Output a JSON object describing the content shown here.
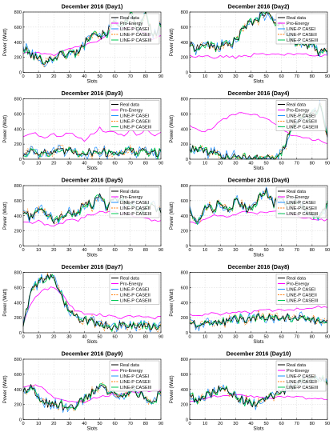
{
  "figure": {
    "legend_order": [
      "Real data",
      "Pro-Energy",
      "LINE-P CASEI",
      "LINE-P CASEII",
      "LINE-P CASEIII"
    ]
  },
  "series_colors": {
    "Real data": "#000000",
    "Pro-Energy": "#ff00ff",
    "LINE-P CASEI": "#1e90ff",
    "LINE-P CASEII": "#ff7f0e",
    "LINE-P CASEIII": "#00c853"
  },
  "chart_data": [
    {
      "type": "line",
      "title": "December 2016 (Day1)",
      "xlabel": "Slots",
      "ylabel": "Power (Watt)",
      "xlim": [
        0,
        90
      ],
      "ylim": [
        0,
        800
      ],
      "xticks": [
        0,
        10,
        20,
        30,
        40,
        50,
        60,
        70,
        80,
        90
      ],
      "yticks": [
        0,
        200,
        400,
        600,
        800
      ],
      "grid": true,
      "legend_position": "top-right",
      "legend_entries": [
        "Real data",
        "Pro-Energy",
        "LINE-P CASEI",
        "LINE-P CASEII",
        "LINE-P CASEIII"
      ],
      "x": [
        0,
        5,
        10,
        15,
        20,
        25,
        30,
        35,
        40,
        45,
        50,
        55,
        60,
        65,
        70,
        75,
        80,
        85,
        90
      ],
      "series": [
        {
          "name": "Real data",
          "values": [
            320,
            230,
            180,
            150,
            200,
            240,
            250,
            270,
            380,
            560,
            480,
            540,
            680,
            620,
            740,
            560,
            780,
            460,
            650
          ]
        },
        {
          "name": "Pro-Energy",
          "values": [
            250,
            260,
            260,
            250,
            240,
            270,
            300,
            330,
            360,
            400,
            430,
            500,
            560,
            580,
            590,
            560,
            520,
            430,
            480
          ]
        }
      ]
    },
    {
      "type": "line",
      "title": "December 2016 (Day2)",
      "xlabel": "Slots",
      "ylabel": "Power (Watt)",
      "xlim": [
        0,
        90
      ],
      "ylim": [
        0,
        800
      ],
      "xticks": [
        0,
        10,
        20,
        30,
        40,
        50,
        60,
        70,
        80,
        90
      ],
      "yticks": [
        0,
        200,
        400,
        600,
        800
      ],
      "grid": true,
      "legend_position": "top-right",
      "legend_entries": [
        "Real data",
        "Pro-Energy",
        "LINE-P CASEI",
        "LINE-P CASEII",
        "LINE-P CASEIII"
      ],
      "x": [
        0,
        5,
        10,
        15,
        20,
        25,
        30,
        35,
        40,
        45,
        50,
        55,
        60,
        65,
        70,
        75,
        80,
        85,
        90
      ],
      "series": [
        {
          "name": "Real data",
          "values": [
            360,
            330,
            380,
            330,
            350,
            360,
            420,
            580,
            660,
            720,
            780,
            690,
            640,
            440,
            380,
            330,
            360,
            250,
            320
          ]
        },
        {
          "name": "Pro-Energy",
          "values": [
            230,
            210,
            220,
            200,
            210,
            220,
            200,
            230,
            220,
            260,
            240,
            250,
            230,
            260,
            240,
            250,
            230,
            230,
            220
          ]
        }
      ]
    },
    {
      "type": "line",
      "title": "December 2016 (Day3)",
      "xlabel": "Slots",
      "ylabel": "Power (Watt)",
      "xlim": [
        0,
        90
      ],
      "ylim": [
        0,
        800
      ],
      "xticks": [
        0,
        10,
        20,
        30,
        40,
        50,
        60,
        70,
        80,
        90
      ],
      "yticks": [
        0,
        200,
        400,
        600,
        800
      ],
      "grid": true,
      "legend_position": "top-right",
      "legend_entries": [
        "Real data",
        "Pro-Energy",
        "LINE-P CASEI",
        "LINE-P CASEII",
        "LINE-P CASEIII"
      ],
      "x": [
        0,
        5,
        10,
        15,
        20,
        25,
        30,
        35,
        40,
        45,
        50,
        55,
        60,
        65,
        70,
        75,
        80,
        85,
        90
      ],
      "series": [
        {
          "name": "Real data",
          "values": [
            60,
            120,
            100,
            90,
            80,
            100,
            110,
            90,
            100,
            90,
            110,
            80,
            90,
            100,
            110,
            90,
            100,
            80,
            90
          ]
        },
        {
          "name": "Pro-Energy",
          "values": [
            300,
            360,
            320,
            280,
            330,
            300,
            360,
            300,
            250,
            330,
            410,
            350,
            370,
            300,
            390,
            320,
            400,
            310,
            350
          ]
        }
      ]
    },
    {
      "type": "line",
      "title": "December 2016 (Day4)",
      "xlabel": "Slots",
      "ylabel": "Power (Watt)",
      "xlim": [
        0,
        90
      ],
      "ylim": [
        0,
        800
      ],
      "xticks": [
        0,
        10,
        20,
        30,
        40,
        50,
        60,
        70,
        80,
        90
      ],
      "yticks": [
        0,
        200,
        400,
        600,
        800
      ],
      "grid": true,
      "legend_position": "top-right",
      "legend_entries": [
        "Real data",
        "Pro-Energy",
        "LINE-P CASEI",
        "LINE-P CASEII",
        "LINE-P CASEIII"
      ],
      "x": [
        0,
        5,
        10,
        15,
        20,
        25,
        30,
        35,
        40,
        45,
        50,
        55,
        60,
        65,
        70,
        75,
        80,
        85,
        90
      ],
      "series": [
        {
          "name": "Real data",
          "values": [
            150,
            120,
            100,
            80,
            60,
            30,
            20,
            10,
            10,
            20,
            20,
            30,
            80,
            350,
            500,
            560,
            600,
            720,
            300
          ]
        },
        {
          "name": "Pro-Energy",
          "values": [
            450,
            380,
            350,
            420,
            500,
            560,
            600,
            620,
            600,
            580,
            530,
            480,
            420,
            340,
            300,
            270,
            260,
            250,
            200
          ]
        }
      ]
    },
    {
      "type": "line",
      "title": "December 2016 (Day5)",
      "xlabel": "Slots",
      "ylabel": "Power (Watt)",
      "xlim": [
        0,
        90
      ],
      "ylim": [
        0,
        800
      ],
      "xticks": [
        0,
        10,
        20,
        30,
        40,
        50,
        60,
        70,
        80,
        90
      ],
      "yticks": [
        0,
        200,
        400,
        600,
        800
      ],
      "grid": true,
      "legend_position": "top-right",
      "legend_entries": [
        "Real data",
        "Pro-Energy",
        "LINE-P CASEI",
        "LINE-P CASEII",
        "LINE-P CASEIII"
      ],
      "x": [
        0,
        5,
        10,
        15,
        20,
        25,
        30,
        35,
        40,
        45,
        50,
        55,
        60,
        65,
        70,
        75,
        80,
        85,
        90
      ],
      "series": [
        {
          "name": "Real data",
          "values": [
            450,
            380,
            500,
            420,
            320,
            380,
            460,
            420,
            600,
            550,
            680,
            520,
            640,
            600,
            540,
            460,
            480,
            520,
            460
          ]
        },
        {
          "name": "Pro-Energy",
          "values": [
            320,
            300,
            340,
            280,
            260,
            300,
            360,
            330,
            390,
            420,
            460,
            440,
            460,
            430,
            420,
            380,
            360,
            340,
            330
          ]
        }
      ]
    },
    {
      "type": "line",
      "title": "December 2016 (Day6)",
      "xlabel": "Slots",
      "ylabel": "Power (Watt)",
      "xlim": [
        0,
        90
      ],
      "ylim": [
        0,
        800
      ],
      "xticks": [
        0,
        10,
        20,
        30,
        40,
        50,
        60,
        70,
        80,
        90
      ],
      "yticks": [
        0,
        200,
        400,
        600,
        800
      ],
      "grid": true,
      "legend_position": "top-right",
      "legend_entries": [
        "Real data",
        "Pro-Energy",
        "LINE-P CASEI",
        "LINE-P CASEII",
        "LINE-P CASEIII"
      ],
      "x": [
        0,
        5,
        10,
        15,
        20,
        25,
        30,
        35,
        40,
        45,
        50,
        55,
        60,
        65,
        70,
        75,
        80,
        85,
        90
      ],
      "series": [
        {
          "name": "Real data",
          "values": [
            500,
            300,
            560,
            480,
            600,
            460,
            600,
            520,
            480,
            620,
            720,
            560,
            640,
            520,
            600,
            500,
            420,
            380,
            620
          ]
        },
        {
          "name": "Pro-Energy",
          "values": [
            320,
            280,
            360,
            420,
            400,
            380,
            420,
            440,
            460,
            430,
            450,
            470,
            440,
            420,
            400,
            380,
            360,
            340,
            350
          ]
        }
      ]
    },
    {
      "type": "line",
      "title": "December 2016 (Day7)",
      "xlabel": "Slots",
      "ylabel": "Power (Watt)",
      "xlim": [
        0,
        90
      ],
      "ylim": [
        0,
        800
      ],
      "xticks": [
        0,
        10,
        20,
        30,
        40,
        50,
        60,
        70,
        80,
        90
      ],
      "yticks": [
        0,
        200,
        400,
        600,
        800
      ],
      "grid": true,
      "legend_position": "top-right",
      "legend_entries": [
        "Real data",
        "Pro-Energy",
        "LINE-P CASEI",
        "LINE-P CASEII",
        "LINE-P CASEIII"
      ],
      "x": [
        0,
        5,
        10,
        15,
        20,
        25,
        30,
        35,
        40,
        45,
        50,
        55,
        60,
        65,
        70,
        75,
        80,
        85,
        90
      ],
      "series": [
        {
          "name": "Real data",
          "values": [
            100,
            550,
            650,
            750,
            700,
            450,
            280,
            200,
            160,
            140,
            120,
            100,
            90,
            100,
            90,
            80,
            70,
            90,
            60
          ]
        },
        {
          "name": "Pro-Energy",
          "values": [
            100,
            400,
            520,
            580,
            600,
            520,
            380,
            280,
            260,
            230,
            240,
            220,
            210,
            200,
            220,
            210,
            200,
            190,
            210
          ]
        }
      ]
    },
    {
      "type": "line",
      "title": "December 2016 (Day8)",
      "xlabel": "Slots",
      "ylabel": "Power (Watt)",
      "xlim": [
        0,
        90
      ],
      "ylim": [
        0,
        800
      ],
      "xticks": [
        0,
        10,
        20,
        30,
        40,
        50,
        60,
        70,
        80,
        90
      ],
      "yticks": [
        0,
        200,
        400,
        600,
        800
      ],
      "grid": true,
      "legend_position": "top-right",
      "legend_entries": [
        "Real data",
        "Pro-Energy",
        "LINE-P CASEI",
        "LINE-P CASEII",
        "LINE-P CASEIII"
      ],
      "x": [
        0,
        5,
        10,
        15,
        20,
        25,
        30,
        35,
        40,
        45,
        50,
        55,
        60,
        65,
        70,
        75,
        80,
        85,
        90
      ],
      "series": [
        {
          "name": "Real data",
          "values": [
            150,
            120,
            140,
            160,
            130,
            160,
            180,
            190,
            170,
            200,
            180,
            210,
            190,
            220,
            200,
            190,
            180,
            120,
            170
          ]
        },
        {
          "name": "Pro-Energy",
          "values": [
            250,
            220,
            240,
            260,
            240,
            260,
            270,
            280,
            270,
            290,
            300,
            290,
            310,
            300,
            320,
            310,
            330,
            340,
            330
          ]
        }
      ]
    },
    {
      "type": "line",
      "title": "December 2016 (Day9)",
      "xlabel": "Slots",
      "ylabel": "Power (Watt)",
      "xlim": [
        0,
        90
      ],
      "ylim": [
        0,
        800
      ],
      "xticks": [
        0,
        10,
        20,
        30,
        40,
        50,
        60,
        70,
        80,
        90
      ],
      "yticks": [
        0,
        200,
        400,
        600,
        800
      ],
      "grid": true,
      "legend_position": "top-right",
      "legend_entries": [
        "Real data",
        "Pro-Energy",
        "LINE-P CASEI",
        "LINE-P CASEII",
        "LINE-P CASEIII"
      ],
      "x": [
        0,
        5,
        10,
        15,
        20,
        25,
        30,
        35,
        40,
        45,
        50,
        55,
        60,
        65,
        70,
        75,
        80,
        85,
        90
      ],
      "series": [
        {
          "name": "Real data",
          "values": [
            380,
            430,
            320,
            220,
            200,
            180,
            160,
            200,
            260,
            360,
            420,
            380,
            360,
            320,
            380,
            340,
            300,
            220,
            380
          ]
        },
        {
          "name": "Pro-Energy",
          "values": [
            430,
            460,
            440,
            380,
            300,
            260,
            240,
            230,
            240,
            280,
            300,
            320,
            340,
            350,
            360,
            370,
            380,
            390,
            380
          ]
        }
      ]
    },
    {
      "type": "line",
      "title": "December 2016 (Day10)",
      "xlabel": "Slots",
      "ylabel": "Power (Watt)",
      "xlim": [
        0,
        90
      ],
      "ylim": [
        0,
        800
      ],
      "xticks": [
        0,
        10,
        20,
        30,
        40,
        50,
        60,
        70,
        80,
        90
      ],
      "yticks": [
        0,
        200,
        400,
        600,
        800
      ],
      "grid": true,
      "legend_position": "top-right",
      "legend_entries": [
        "Real data",
        "Pro-Energy",
        "LINE-P CASEI",
        "LINE-P CASEII",
        "LINE-P CASEIII"
      ],
      "x": [
        0,
        5,
        10,
        15,
        20,
        25,
        30,
        35,
        40,
        45,
        50,
        55,
        60,
        65,
        70,
        75,
        80,
        85,
        90
      ],
      "series": [
        {
          "name": "Real data",
          "values": [
            350,
            230,
            330,
            360,
            420,
            380,
            300,
            260,
            220,
            200,
            260,
            320,
            360,
            420,
            460,
            520,
            560,
            540,
            520
          ]
        },
        {
          "name": "Pro-Energy",
          "values": [
            240,
            250,
            280,
            300,
            320,
            330,
            330,
            320,
            300,
            290,
            280,
            290,
            300,
            310,
            300,
            290,
            280,
            270,
            260
          ]
        }
      ]
    }
  ]
}
